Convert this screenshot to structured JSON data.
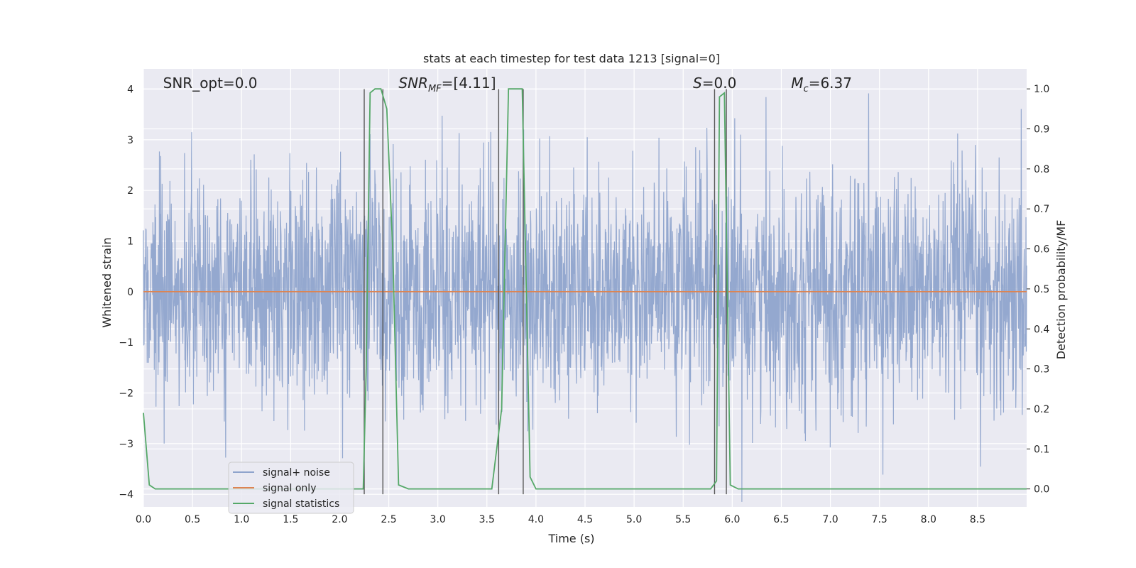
{
  "chart_data": {
    "type": "line",
    "title": "stats at each timestep for test data 1213 [signal=0]",
    "xlabel": "Time (s)",
    "ylabel_left": "Whitened strain",
    "ylabel_right": "Detection probability/MF",
    "xlim": [
      0.0,
      9.0
    ],
    "ylim_left": [
      -4.25,
      4.4
    ],
    "ylim_right": [
      -0.045,
      1.05
    ],
    "x_ticks": [
      0.0,
      0.5,
      1.0,
      1.5,
      2.0,
      2.5,
      3.0,
      3.5,
      4.0,
      4.5,
      5.0,
      5.5,
      6.0,
      6.5,
      7.0,
      7.5,
      8.0,
      8.5
    ],
    "x_tick_labels": [
      "0.0",
      "0.5",
      "1.0",
      "1.5",
      "2.0",
      "2.5",
      "3.0",
      "3.5",
      "4.0",
      "4.5",
      "5.0",
      "5.5",
      "6.0",
      "6.5",
      "7.0",
      "7.5",
      "8.0",
      "8.5"
    ],
    "y_left_ticks": [
      4,
      3,
      2,
      1,
      0,
      -1,
      -2,
      -3,
      -4
    ],
    "y_left_tick_labels": [
      "4",
      "3",
      "2",
      "1",
      "0",
      "−1",
      "−2",
      "−3",
      "−4"
    ],
    "y_right_ticks": [
      1.0,
      0.9,
      0.8,
      0.7,
      0.6,
      0.5,
      0.4,
      0.3,
      0.2,
      0.1,
      0.0
    ],
    "y_right_tick_labels": [
      "1.0",
      "0.9",
      "0.8",
      "0.7",
      "0.6",
      "0.5",
      "0.4",
      "0.3",
      "0.2",
      "0.1",
      "0.0"
    ],
    "grid": true,
    "annotations": [
      {
        "text": "SNR_opt=0.0",
        "x": 0.2
      },
      {
        "text": "SNR_MF=[4.11]",
        "x": 2.6
      },
      {
        "text": "S=0.0",
        "x": 5.6
      },
      {
        "text": "M_c=6.37",
        "x": 6.6
      }
    ],
    "vertical_lines": [
      2.25,
      2.44,
      3.62,
      3.87,
      5.82,
      5.94
    ],
    "vertical_lines_range": [
      -4.0,
      4.0
    ],
    "series": [
      {
        "name": "signal+ noise",
        "color": "#8fa4cc",
        "description_style": "noise",
        "amplitude_std": 1.0
      },
      {
        "name": "signal only",
        "color": "#dd8452",
        "x": [
          0.0,
          9.0
        ],
        "y": [
          0.0,
          0.0
        ]
      },
      {
        "name": "signal statistics",
        "color": "#55a868",
        "axis": "right",
        "x": [
          0.0,
          0.06,
          0.12,
          2.24,
          2.27,
          2.31,
          2.36,
          2.42,
          2.48,
          2.54,
          2.6,
          2.7,
          3.55,
          3.65,
          3.72,
          3.86,
          3.94,
          4.0,
          5.78,
          5.84,
          5.87,
          5.92,
          5.98,
          6.06,
          9.0
        ],
        "y": [
          0.19,
          0.01,
          0.0,
          0.0,
          0.3,
          0.99,
          1.0,
          1.0,
          0.95,
          0.6,
          0.01,
          0.0,
          0.0,
          0.2,
          1.0,
          1.0,
          0.03,
          0.0,
          0.0,
          0.02,
          0.98,
          0.99,
          0.01,
          0.0,
          0.0
        ]
      }
    ],
    "legend": {
      "placement": "lower-left",
      "entries": [
        "signal+ noise",
        "signal only",
        "signal statistics"
      ]
    }
  }
}
